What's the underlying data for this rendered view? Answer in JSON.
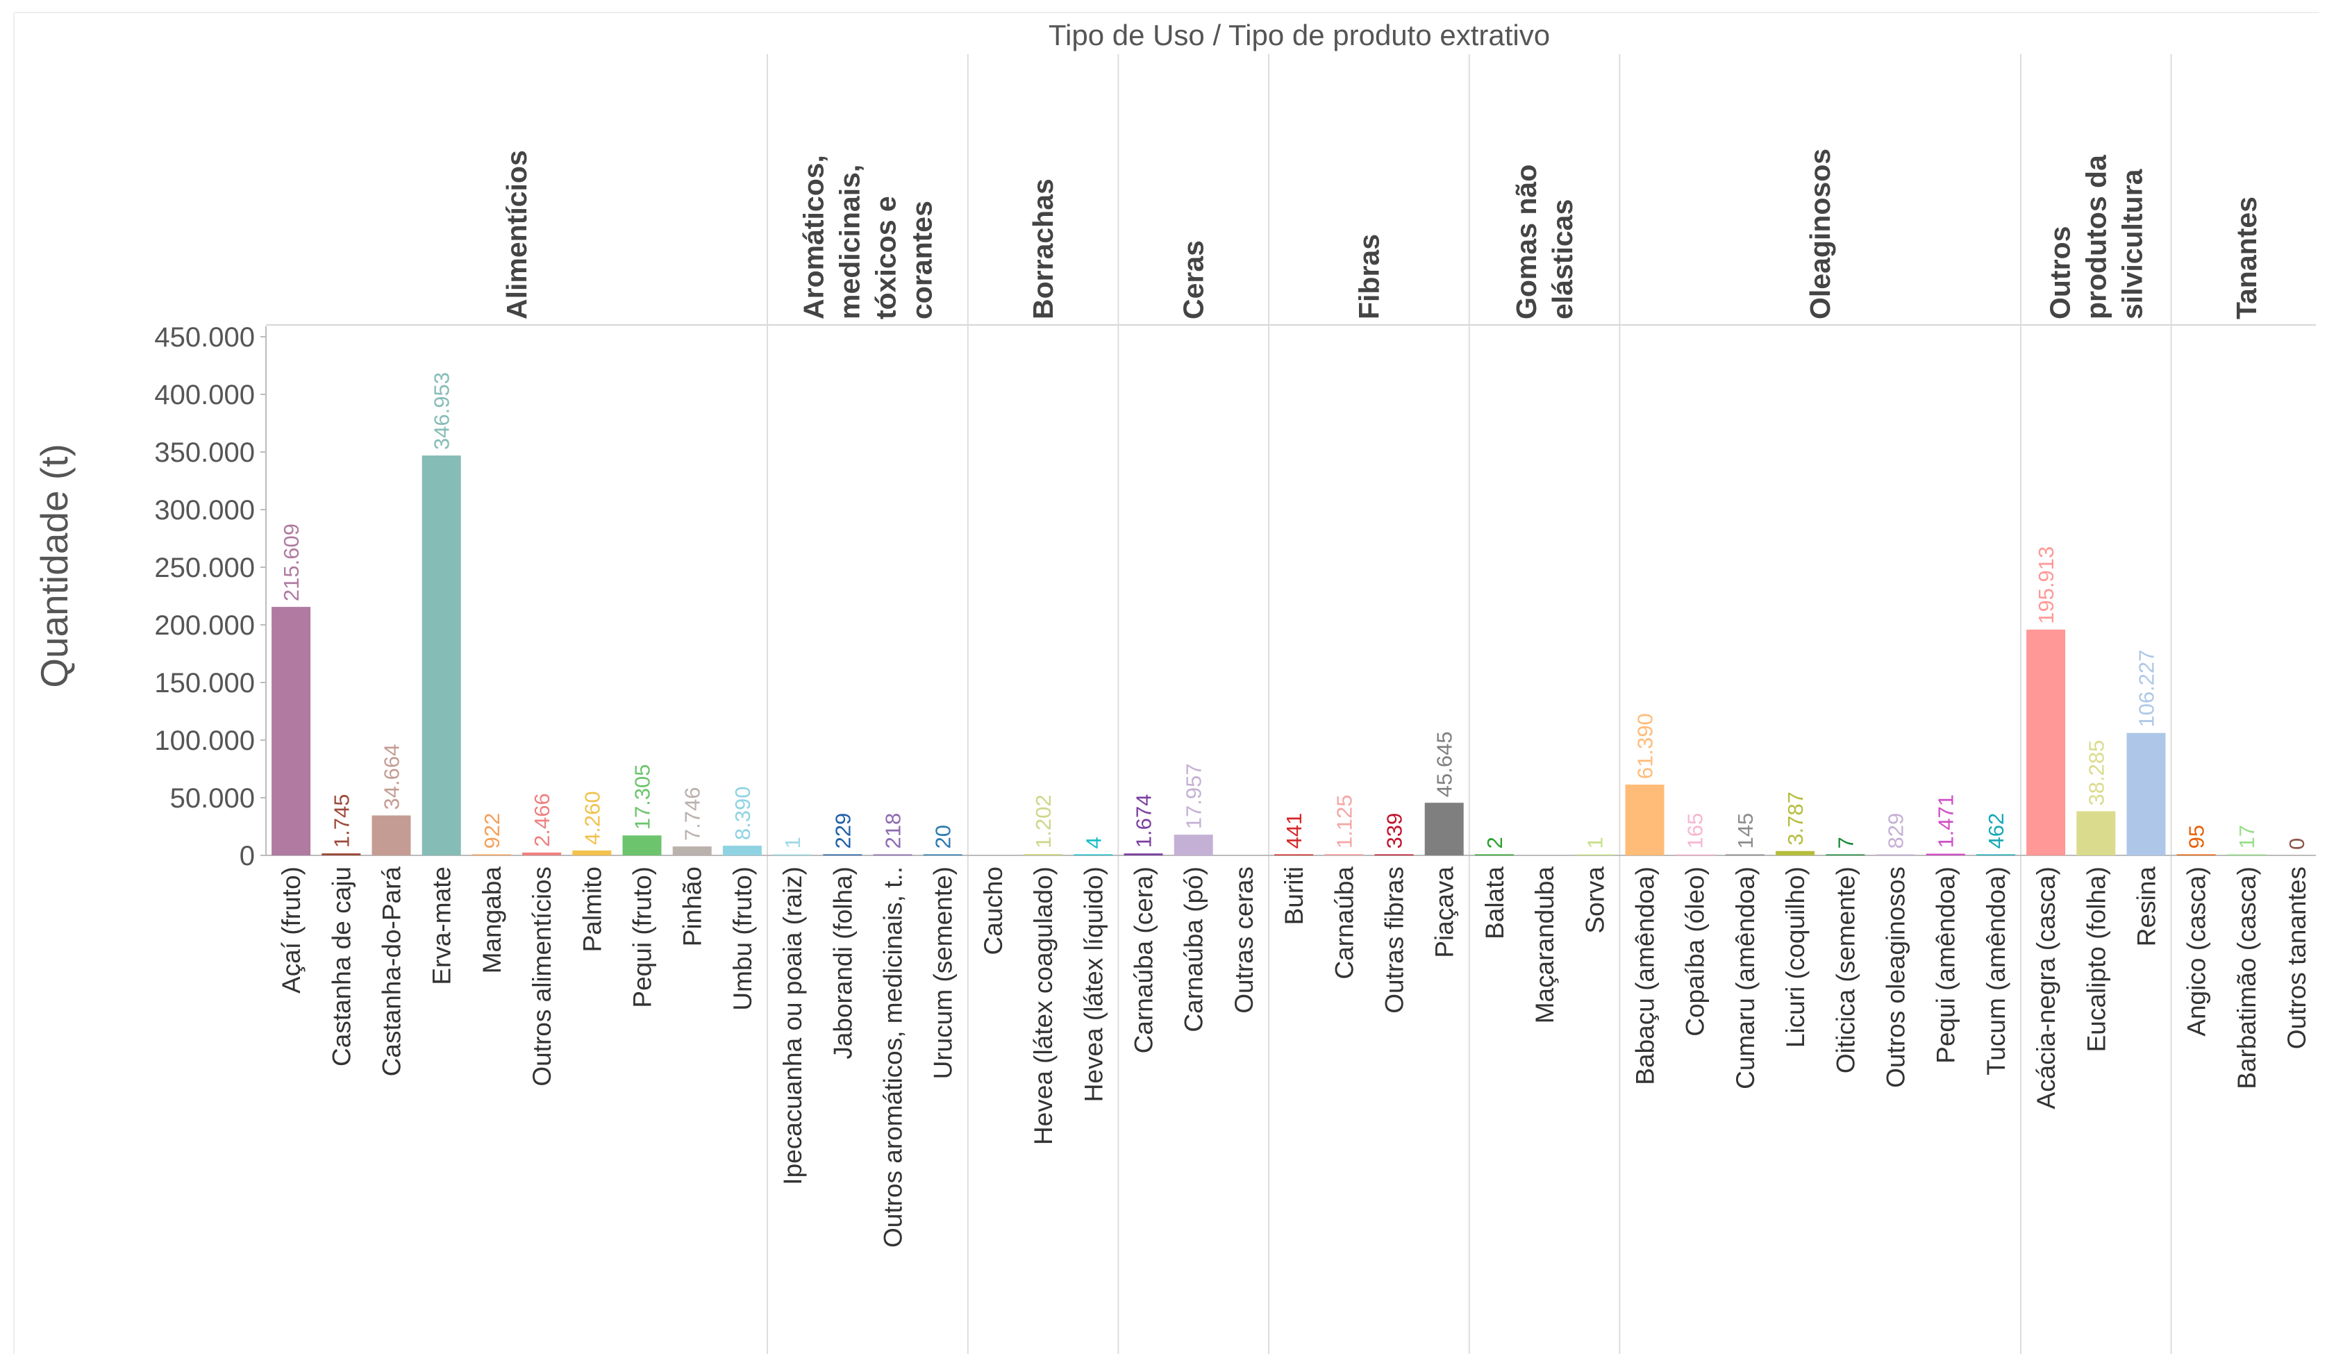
{
  "chart_data": {
    "type": "bar",
    "title": "Tipo de Uso  /  Tipo de produto extrativo",
    "ylabel": "Quantidade (t)",
    "ylim": [
      0,
      450000
    ],
    "yticks": [
      0,
      50000,
      100000,
      150000,
      200000,
      250000,
      300000,
      350000,
      400000,
      450000
    ],
    "ytick_labels": [
      "0",
      "50.000",
      "100.000",
      "150.000",
      "200.000",
      "250.000",
      "300.000",
      "350.000",
      "400.000",
      "450.000"
    ],
    "grid": false,
    "groups": [
      {
        "label": "Alimentícios",
        "items": [
          {
            "category": "Açaí (fruto)",
            "value": 215609,
            "label": "215.609",
            "color": "#b07aa1"
          },
          {
            "category": "Castanha de caju",
            "value": 1745,
            "label": "1.745",
            "color": "#9c4a3a"
          },
          {
            "category": "Castanha-do-Pará",
            "value": 34664,
            "label": "34.664",
            "color": "#c49c94"
          },
          {
            "category": "Erva-mate",
            "value": 346953,
            "label": "346.953",
            "color": "#86bcb6"
          },
          {
            "category": "Mangaba",
            "value": 922,
            "label": "922",
            "color": "#f5a15c"
          },
          {
            "category": "Outros alimentícios",
            "value": 2466,
            "label": "2.466",
            "color": "#f08080"
          },
          {
            "category": "Palmito",
            "value": 4260,
            "label": "4.260",
            "color": "#f2c14e"
          },
          {
            "category": "Pequi (fruto)",
            "value": 17305,
            "label": "17.305",
            "color": "#6cc46c"
          },
          {
            "category": "Pinhão",
            "value": 7746,
            "label": "7.746",
            "color": "#bab0ac"
          },
          {
            "category": "Umbu (fruto)",
            "value": 8390,
            "label": "8.390",
            "color": "#8fd3e3"
          }
        ]
      },
      {
        "label": "Aromáticos, medicinais, tóxicos e corantes",
        "items": [
          {
            "category": "Ipecacuanha ou poaia (raiz)",
            "value": 1,
            "label": "1",
            "color": "#9edae5"
          },
          {
            "category": "Jaborandi (folha)",
            "value": 229,
            "label": "229",
            "color": "#1f5fa8"
          },
          {
            "category": "Outros aromáticos, medicinais, t..",
            "value": 218,
            "label": "218",
            "color": "#8c6bb1"
          },
          {
            "category": "Urucum (semente)",
            "value": 20,
            "label": "20",
            "color": "#2a7ab0"
          }
        ]
      },
      {
        "label": "Borrachas",
        "items": [
          {
            "category": "Caucho",
            "value": 0,
            "label": "",
            "color": "#cccccc"
          },
          {
            "category": "Hevea (látex coagulado)",
            "value": 1202,
            "label": "1.202",
            "color": "#cfd68a"
          },
          {
            "category": "Hevea (látex líquido)",
            "value": 4,
            "label": "4",
            "color": "#17bec8"
          }
        ]
      },
      {
        "label": "Ceras",
        "items": [
          {
            "category": "Carnaúba (cera)",
            "value": 1674,
            "label": "1.674",
            "color": "#7b3fa0"
          },
          {
            "category": "Carnaúba (pó)",
            "value": 17957,
            "label": "17.957",
            "color": "#c5b0d5"
          },
          {
            "category": "Outras ceras",
            "value": 0,
            "label": "",
            "color": "#cccccc"
          }
        ]
      },
      {
        "label": "Fibras",
        "items": [
          {
            "category": "Buriti",
            "value": 441,
            "label": "441",
            "color": "#d62728"
          },
          {
            "category": "Carnaúba",
            "value": 1125,
            "label": "1.125",
            "color": "#f4a6a6"
          },
          {
            "category": "Outras fibras",
            "value": 339,
            "label": "339",
            "color": "#c0142b"
          },
          {
            "category": "Piaçava",
            "value": 45645,
            "label": "45.645",
            "color": "#7f7f7f"
          }
        ]
      },
      {
        "label": "Gomas não elásticas",
        "items": [
          {
            "category": "Balata",
            "value": 2,
            "label": "2",
            "color": "#2ca02c"
          },
          {
            "category": "Maçaranduba",
            "value": 0,
            "label": "",
            "color": "#cccccc"
          },
          {
            "category": "Sorva",
            "value": 1,
            "label": "1",
            "color": "#c7e08a"
          }
        ]
      },
      {
        "label": "Oleaginosos",
        "items": [
          {
            "category": "Babaçu (amêndoa)",
            "value": 61390,
            "label": "61.390",
            "color": "#ffbb78"
          },
          {
            "category": "Copaíba (óleo)",
            "value": 165,
            "label": "165",
            "color": "#f7b6d2"
          },
          {
            "category": "Cumaru (amêndoa)",
            "value": 145,
            "label": "145",
            "color": "#8c8c8c"
          },
          {
            "category": "Licuri (coquilho)",
            "value": 3787,
            "label": "3.787",
            "color": "#b5bd3c"
          },
          {
            "category": "Oiticica (semente)",
            "value": 7,
            "label": "7",
            "color": "#1b8a3a"
          },
          {
            "category": "Outros oleaginosos",
            "value": 829,
            "label": "829",
            "color": "#c5b0d5"
          },
          {
            "category": "Pequi (amêndoa)",
            "value": 1471,
            "label": "1.471",
            "color": "#d04fc4"
          },
          {
            "category": "Tucum (amêndoa)",
            "value": 462,
            "label": "462",
            "color": "#17a8b5"
          }
        ]
      },
      {
        "label": "Outros produtos da silvicultura",
        "items": [
          {
            "category": "Acácia-negra (casca)",
            "value": 195913,
            "label": "195.913",
            "color": "#ff9896"
          },
          {
            "category": "Eucalipto (folha)",
            "value": 38285,
            "label": "38.285",
            "color": "#dbdb8d"
          },
          {
            "category": "Resina",
            "value": 106227,
            "label": "106.227",
            "color": "#aec7e8"
          }
        ]
      },
      {
        "label": "Tanantes",
        "items": [
          {
            "category": "Angico (casca)",
            "value": 95,
            "label": "95",
            "color": "#e8600a"
          },
          {
            "category": "Barbatimão (casca)",
            "value": 17,
            "label": "17",
            "color": "#98df8a"
          },
          {
            "category": "Outros tanantes",
            "value": 0,
            "label": "0",
            "color": "#8c564b"
          }
        ]
      }
    ]
  }
}
